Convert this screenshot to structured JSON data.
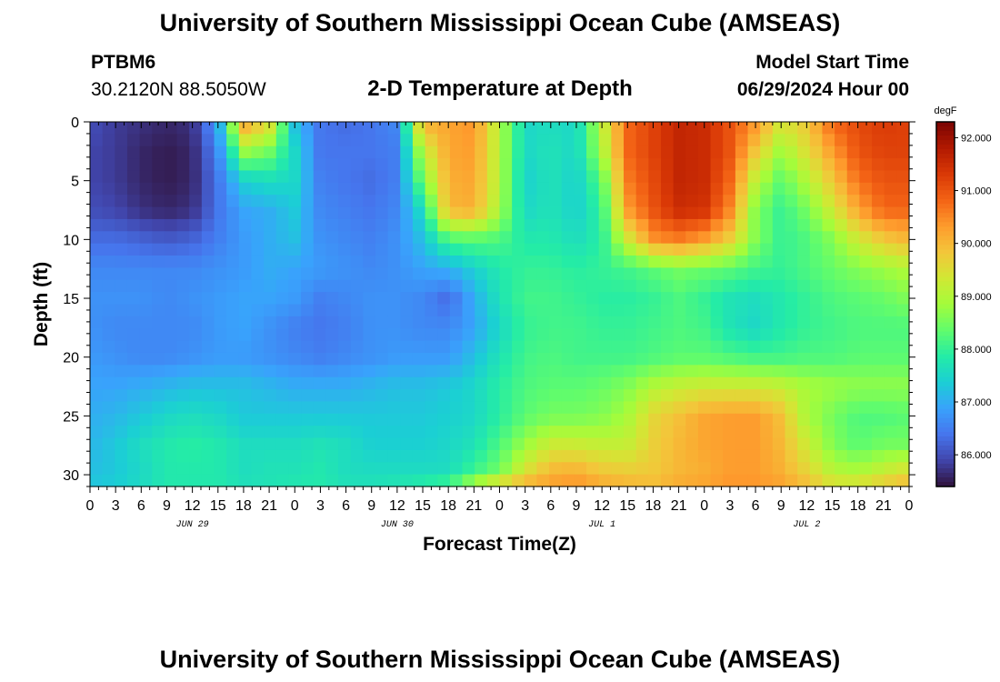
{
  "header": {
    "title": "University of Southern Mississippi Ocean Cube (AMSEAS)",
    "station_id": "PTBM6",
    "station_coords": "30.2120N  88.5050W",
    "plot_title": "2-D Temperature at Depth",
    "model_start_label": "Model Start Time",
    "model_start_value": "06/29/2024 Hour 00"
  },
  "footer": {
    "title": "University of Southern Mississippi Ocean Cube (AMSEAS)"
  },
  "chart_data": {
    "type": "heatmap",
    "title": "2-D Temperature at Depth",
    "xlabel": "Forecast Time(Z)",
    "ylabel": "Depth (ft)",
    "units": "degF",
    "x_tick_labels": [
      "0",
      "3",
      "6",
      "9",
      "12",
      "15",
      "18",
      "21",
      "0",
      "3",
      "6",
      "9",
      "12",
      "15",
      "18",
      "21",
      "0",
      "3",
      "6",
      "9",
      "12",
      "15",
      "18",
      "21",
      "0",
      "3",
      "6",
      "9",
      "12",
      "15",
      "18",
      "21",
      "0"
    ],
    "x_date_labels": [
      "JUN 29",
      "JUN 30",
      "JUL 1",
      "JUL 2"
    ],
    "y_tick_labels": [
      "0",
      "5",
      "10",
      "15",
      "20",
      "25",
      "30"
    ],
    "xlim_hours": [
      0,
      96
    ],
    "ylim_ft": [
      0,
      31
    ],
    "colorbar_ticks": [
      "86.000",
      "87.000",
      "88.000",
      "89.000",
      "90.000",
      "91.000",
      "92.000"
    ],
    "colorbar_range": [
      85.4,
      92.3
    ],
    "time_hours": [
      0,
      3,
      6,
      9,
      12,
      15,
      18,
      21,
      24,
      27,
      30,
      33,
      36,
      39,
      42,
      45,
      48,
      51,
      54,
      57,
      60,
      63,
      66,
      69,
      72,
      75,
      78,
      81,
      84,
      87,
      90,
      93,
      96
    ],
    "depth_ft": [
      0,
      2.5,
      5,
      7.5,
      10,
      12.5,
      15,
      17.5,
      20,
      22.5,
      25,
      27.5,
      30,
      31
    ],
    "temperature_degF": [
      [
        86.0,
        85.8,
        85.7,
        85.6,
        85.7,
        86.9,
        90.3,
        89.6,
        87.2,
        86.4,
        86.3,
        86.4,
        86.6,
        90.1,
        90.2,
        90.4,
        89.0,
        87.5,
        87.6,
        87.5,
        89.1,
        90.8,
        91.2,
        91.6,
        91.5,
        91.0,
        90.4,
        89.4,
        89.8,
        90.8,
        91.1,
        91.3,
        91.2
      ],
      [
        85.9,
        85.8,
        85.6,
        85.5,
        85.6,
        86.6,
        88.8,
        88.5,
        87.5,
        86.4,
        86.4,
        86.4,
        86.5,
        89.1,
        90.2,
        90.3,
        89.0,
        87.5,
        87.7,
        87.5,
        88.9,
        90.8,
        91.2,
        91.6,
        91.5,
        91.0,
        89.8,
        88.8,
        89.5,
        90.3,
        91.0,
        91.2,
        91.2
      ],
      [
        85.9,
        85.8,
        85.6,
        85.5,
        85.6,
        86.4,
        87.4,
        87.6,
        87.5,
        86.5,
        86.4,
        86.3,
        86.5,
        88.5,
        90.1,
        90.2,
        89.0,
        87.4,
        87.7,
        87.4,
        88.3,
        90.6,
        91.1,
        91.6,
        91.5,
        90.8,
        89.1,
        88.3,
        89.0,
        89.8,
        90.7,
        91.0,
        91.0
      ],
      [
        86.0,
        85.9,
        85.7,
        85.6,
        85.7,
        86.4,
        86.9,
        87.0,
        87.3,
        86.6,
        86.5,
        86.4,
        86.6,
        87.6,
        90.0,
        90.1,
        88.9,
        87.5,
        87.7,
        87.4,
        88.0,
        90.3,
        91.0,
        91.5,
        91.4,
        90.5,
        88.6,
        88.0,
        88.5,
        89.3,
        90.2,
        90.8,
        90.8
      ],
      [
        86.3,
        86.3,
        86.2,
        86.1,
        86.2,
        86.5,
        86.8,
        87.0,
        87.2,
        86.7,
        86.6,
        86.5,
        86.7,
        87.2,
        88.2,
        88.3,
        88.2,
        87.8,
        87.8,
        87.6,
        87.9,
        89.3,
        90.4,
        90.6,
        90.3,
        89.7,
        88.6,
        88.0,
        88.2,
        88.6,
        89.3,
        89.8,
        90.0
      ],
      [
        86.6,
        86.6,
        86.6,
        86.6,
        86.6,
        86.7,
        86.8,
        87.0,
        86.9,
        86.8,
        86.7,
        86.6,
        86.7,
        86.9,
        87.0,
        87.4,
        87.8,
        88.0,
        88.0,
        87.9,
        88.0,
        88.1,
        88.3,
        88.5,
        88.4,
        88.3,
        88.1,
        88.0,
        88.2,
        88.4,
        88.6,
        88.8,
        89.0
      ],
      [
        86.7,
        86.7,
        86.7,
        86.6,
        86.7,
        86.8,
        86.9,
        86.9,
        86.8,
        86.5,
        86.6,
        86.7,
        86.7,
        86.6,
        86.3,
        87.0,
        87.7,
        88.1,
        88.1,
        88.0,
        87.9,
        87.9,
        88.0,
        88.2,
        88.0,
        87.7,
        87.6,
        87.8,
        88.0,
        88.2,
        88.3,
        88.4,
        88.6
      ],
      [
        86.7,
        86.6,
        86.6,
        86.6,
        86.6,
        86.8,
        86.9,
        86.7,
        86.5,
        86.4,
        86.5,
        86.7,
        86.7,
        86.6,
        86.6,
        86.9,
        87.5,
        88.0,
        88.1,
        88.1,
        88.0,
        88.0,
        88.1,
        88.2,
        88.1,
        87.7,
        87.5,
        87.8,
        88.0,
        88.1,
        88.2,
        88.2,
        88.2
      ],
      [
        86.8,
        86.7,
        86.6,
        86.6,
        86.7,
        86.8,
        86.8,
        86.7,
        86.6,
        86.5,
        86.6,
        86.7,
        86.8,
        86.8,
        86.8,
        87.2,
        87.7,
        88.1,
        88.2,
        88.1,
        88.1,
        88.1,
        88.2,
        88.3,
        88.3,
        88.2,
        88.1,
        88.1,
        88.2,
        88.2,
        88.3,
        88.3,
        88.3
      ],
      [
        86.9,
        86.9,
        87.0,
        87.1,
        87.2,
        87.2,
        87.2,
        87.1,
        87.0,
        87.0,
        87.0,
        87.1,
        87.2,
        87.2,
        87.3,
        87.5,
        87.9,
        88.2,
        88.3,
        88.3,
        88.4,
        88.6,
        89.0,
        89.2,
        89.3,
        89.3,
        89.3,
        89.2,
        88.9,
        88.8,
        88.7,
        88.7,
        88.7
      ],
      [
        87.0,
        87.1,
        87.3,
        87.5,
        87.6,
        87.5,
        87.3,
        87.3,
        87.3,
        87.3,
        87.3,
        87.3,
        87.3,
        87.3,
        87.4,
        87.5,
        87.9,
        88.3,
        88.5,
        88.5,
        88.6,
        88.9,
        89.6,
        89.9,
        90.2,
        90.3,
        90.3,
        89.9,
        88.9,
        88.5,
        88.2,
        88.2,
        88.3
      ],
      [
        87.1,
        87.3,
        87.6,
        87.8,
        87.9,
        87.8,
        87.6,
        87.6,
        87.6,
        87.7,
        87.6,
        87.4,
        87.4,
        87.4,
        87.5,
        87.7,
        88.2,
        88.8,
        89.3,
        89.3,
        89.2,
        89.2,
        89.7,
        90.0,
        90.2,
        90.3,
        90.3,
        90.0,
        89.3,
        88.6,
        88.3,
        88.5,
        88.5
      ],
      [
        87.2,
        87.3,
        87.5,
        87.8,
        87.8,
        87.8,
        87.6,
        87.7,
        87.7,
        87.8,
        87.6,
        87.6,
        87.6,
        87.6,
        87.6,
        88.1,
        88.5,
        89.5,
        90.1,
        90.2,
        89.9,
        89.8,
        89.8,
        90.0,
        90.1,
        90.3,
        90.3,
        90.1,
        89.7,
        89.1,
        89.0,
        89.3,
        89.6
      ],
      [
        87.3,
        87.4,
        87.6,
        87.8,
        87.8,
        87.8,
        87.7,
        87.7,
        87.8,
        87.8,
        87.7,
        87.7,
        87.8,
        88.0,
        88.3,
        89.3,
        90.1,
        90.3,
        90.3,
        90.4,
        90.2,
        90.1,
        90.0,
        90.2,
        90.3,
        90.4,
        90.4,
        90.3,
        90.0,
        89.6,
        89.6,
        89.9,
        90.1
      ]
    ],
    "grid": false,
    "colormap": [
      "#30123b",
      "#4145ab",
      "#4675ed",
      "#39a2fc",
      "#1bcfd4",
      "#24eca6",
      "#61fc6c",
      "#a4fc3b",
      "#d1e834",
      "#f3c63a",
      "#fe9b2d",
      "#f36315",
      "#d93806",
      "#b11901",
      "#7a0403"
    ]
  }
}
